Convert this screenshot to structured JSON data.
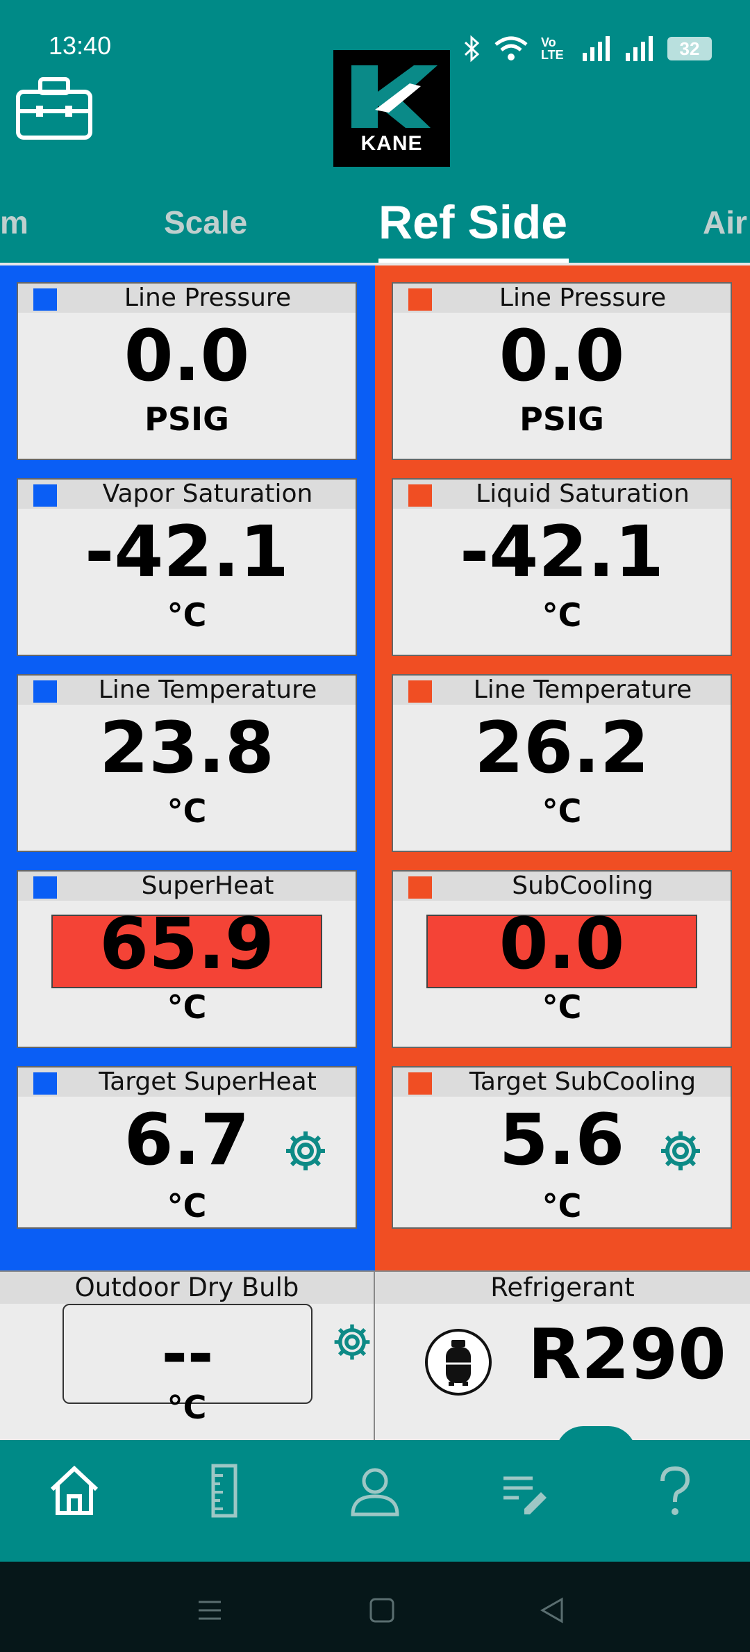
{
  "status_bar": {
    "time": "13:40",
    "battery": "32",
    "network_label": "Vo LTE"
  },
  "brand": {
    "logo_text": "KANE"
  },
  "tabs": [
    {
      "label": "m",
      "active": false
    },
    {
      "label": "Scale",
      "active": false
    },
    {
      "label": "Ref Side",
      "active": true
    },
    {
      "label": "Air",
      "active": false
    }
  ],
  "left_panel": {
    "color": "#0a5ef5",
    "cards": [
      {
        "title": "Line Pressure",
        "value": "0.0",
        "unit": "PSIG"
      },
      {
        "title": "Vapor Saturation",
        "value": "-42.1",
        "unit": "°C"
      },
      {
        "title": "Line Temperature",
        "value": "23.8",
        "unit": "°C"
      },
      {
        "title": "SuperHeat",
        "value": "65.9",
        "unit": "°C",
        "alert": true
      },
      {
        "title": "Target SuperHeat",
        "value": "6.7",
        "unit": "°C",
        "settings_icon": "gear-icon"
      }
    ]
  },
  "right_panel": {
    "color": "#f04e23",
    "cards": [
      {
        "title": "Line Pressure",
        "value": "0.0",
        "unit": "PSIG"
      },
      {
        "title": "Liquid Saturation",
        "value": "-42.1",
        "unit": "°C"
      },
      {
        "title": "Line Temperature",
        "value": "26.2",
        "unit": "°C"
      },
      {
        "title": "SubCooling",
        "value": "0.0",
        "unit": "°C",
        "alert": true
      },
      {
        "title": "Target SubCooling",
        "value": "5.6",
        "unit": "°C",
        "settings_icon": "gear-icon"
      }
    ]
  },
  "outdoor": {
    "title": "Outdoor Dry Bulb",
    "value": "--",
    "unit": "°C"
  },
  "refrigerant": {
    "title": "Refrigerant",
    "value": "R290",
    "icon": "gas-cylinder-icon"
  },
  "bottom_nav": [
    {
      "icon": "home-icon",
      "active": true
    },
    {
      "icon": "ruler-icon",
      "active": false
    },
    {
      "icon": "user-icon",
      "active": false
    },
    {
      "icon": "notes-icon",
      "active": false
    },
    {
      "icon": "help-icon",
      "active": false
    }
  ],
  "colors": {
    "header": "#008a87",
    "alert": "#f44336",
    "accent_teal": "#0d8a86"
  }
}
